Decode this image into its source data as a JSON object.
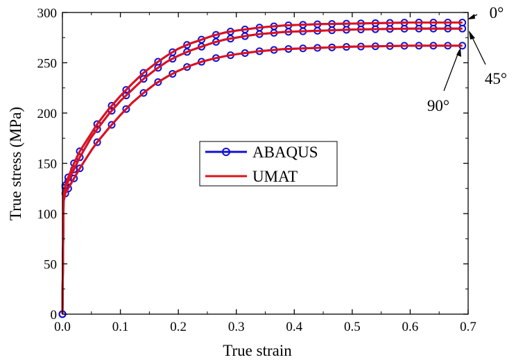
{
  "chart_data": {
    "type": "line",
    "xlabel": "True strain",
    "ylabel": "True stress (MPa)",
    "xlim": [
      0,
      0.7
    ],
    "ylim": [
      0,
      300
    ],
    "xticks": [
      "0.0",
      "0.1",
      "0.2",
      "0.3",
      "0.4",
      "0.5",
      "0.6",
      "0.7"
    ],
    "yticks": [
      "0",
      "50",
      "100",
      "150",
      "200",
      "250",
      "300"
    ],
    "legend": {
      "placement": "center",
      "entries": [
        {
          "label": "ABAQUS",
          "color": "#1010d0",
          "marker": "open-circle"
        },
        {
          "label": "UMAT",
          "color": "#e0101a",
          "marker": "none"
        }
      ]
    },
    "curves": [
      {
        "orientation": "0°",
        "points": [
          [
            0,
            0
          ],
          [
            0.002,
            118
          ],
          [
            0.005,
            128
          ],
          [
            0.01,
            136
          ],
          [
            0.02,
            150
          ],
          [
            0.03,
            162
          ],
          [
            0.04,
            171
          ],
          [
            0.05,
            180
          ],
          [
            0.06,
            189
          ],
          [
            0.08,
            204
          ],
          [
            0.1,
            217
          ],
          [
            0.12,
            229
          ],
          [
            0.14,
            240
          ],
          [
            0.16,
            249
          ],
          [
            0.18,
            257
          ],
          [
            0.2,
            264
          ],
          [
            0.22,
            269
          ],
          [
            0.24,
            273
          ],
          [
            0.26,
            277
          ],
          [
            0.28,
            280
          ],
          [
            0.3,
            282
          ],
          [
            0.32,
            283.5
          ],
          [
            0.34,
            285
          ],
          [
            0.36,
            286
          ],
          [
            0.38,
            287
          ],
          [
            0.4,
            287.5
          ],
          [
            0.45,
            288.5
          ],
          [
            0.5,
            289
          ],
          [
            0.55,
            289.5
          ],
          [
            0.6,
            290
          ],
          [
            0.65,
            290
          ],
          [
            0.69,
            290
          ]
        ]
      },
      {
        "orientation": "45°",
        "points": [
          [
            0,
            0
          ],
          [
            0.002,
            116
          ],
          [
            0.005,
            126
          ],
          [
            0.01,
            132
          ],
          [
            0.02,
            144
          ],
          [
            0.03,
            156
          ],
          [
            0.04,
            166
          ],
          [
            0.05,
            176
          ],
          [
            0.06,
            184
          ],
          [
            0.08,
            199
          ],
          [
            0.1,
            212
          ],
          [
            0.12,
            223
          ],
          [
            0.14,
            234
          ],
          [
            0.16,
            243
          ],
          [
            0.18,
            251
          ],
          [
            0.2,
            257
          ],
          [
            0.22,
            262
          ],
          [
            0.24,
            266
          ],
          [
            0.26,
            270
          ],
          [
            0.28,
            273
          ],
          [
            0.3,
            275
          ],
          [
            0.32,
            277
          ],
          [
            0.34,
            278.5
          ],
          [
            0.36,
            279.5
          ],
          [
            0.38,
            280.5
          ],
          [
            0.4,
            281
          ],
          [
            0.45,
            282
          ],
          [
            0.5,
            283
          ],
          [
            0.55,
            283.5
          ],
          [
            0.6,
            284
          ],
          [
            0.65,
            284
          ],
          [
            0.69,
            284
          ]
        ]
      },
      {
        "orientation": "90°",
        "points": [
          [
            0,
            0
          ],
          [
            0.002,
            112
          ],
          [
            0.005,
            120
          ],
          [
            0.01,
            125
          ],
          [
            0.02,
            135
          ],
          [
            0.03,
            145
          ],
          [
            0.04,
            154
          ],
          [
            0.05,
            163
          ],
          [
            0.06,
            171
          ],
          [
            0.08,
            185
          ],
          [
            0.1,
            198
          ],
          [
            0.12,
            210
          ],
          [
            0.14,
            220
          ],
          [
            0.16,
            229
          ],
          [
            0.18,
            236
          ],
          [
            0.2,
            242
          ],
          [
            0.22,
            247
          ],
          [
            0.24,
            251
          ],
          [
            0.26,
            254
          ],
          [
            0.28,
            256.5
          ],
          [
            0.3,
            258.5
          ],
          [
            0.32,
            260
          ],
          [
            0.34,
            261.5
          ],
          [
            0.36,
            262.5
          ],
          [
            0.38,
            263.5
          ],
          [
            0.4,
            264
          ],
          [
            0.45,
            265
          ],
          [
            0.5,
            266
          ],
          [
            0.55,
            266.5
          ],
          [
            0.6,
            267
          ],
          [
            0.65,
            267
          ],
          [
            0.69,
            267
          ]
        ]
      }
    ]
  }
}
